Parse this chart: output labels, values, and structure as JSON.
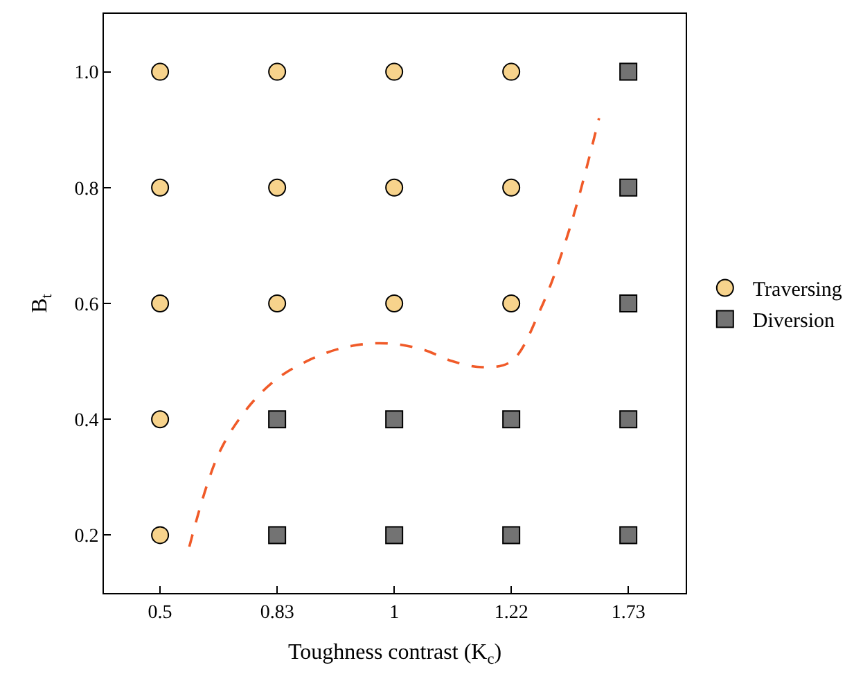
{
  "chart_data": {
    "type": "scatter",
    "xlabel": "Toughness contrast (K$_{c}$)",
    "ylabel": "B$_{t}$",
    "categories": [
      "0.5",
      null,
      null,
      null,
      "0.83",
      null,
      null,
      null,
      "1",
      null,
      null,
      null,
      "1.22",
      null,
      null,
      null,
      "1.73"
    ],
    "ylim": [
      0.1,
      1.1
    ],
    "yticks": [
      {
        "value": 0.2,
        "label": "0.2"
      },
      {
        "value": 0.4,
        "label": "0.4"
      },
      {
        "value": 0.6,
        "label": "0.6"
      },
      {
        "value": 0.8,
        "label": "0.8"
      },
      {
        "value": 1.0,
        "label": "1.0"
      }
    ],
    "legend": "right",
    "series": [
      {
        "name": "Traversing",
        "marker": "circle",
        "color": "#f7d38c",
        "x": [
          "0.5",
          "0.5",
          "0.5",
          "0.5",
          "0.5",
          "0.83",
          "0.83",
          "0.83",
          "1",
          "1",
          "1",
          "1.22",
          "1.22",
          "1.22"
        ],
        "values": [
          0.2,
          0.4,
          0.6,
          0.8,
          1.0,
          0.6,
          0.8,
          1.0,
          0.6,
          0.8,
          1.0,
          0.6,
          0.8,
          1.0
        ]
      },
      {
        "name": "Diversion",
        "marker": "square",
        "color": "#737373",
        "x": [
          "0.83",
          "0.83",
          "1",
          "1",
          "1.22",
          "1.22",
          "1.73",
          "1.73",
          "1.73",
          "1.73",
          "1.73"
        ],
        "values": [
          0.2,
          0.4,
          0.2,
          0.4,
          0.2,
          0.4,
          0.2,
          0.4,
          0.6,
          0.8,
          1.0
        ]
      },
      {
        "type": "line",
        "marker": "none",
        "line_style": "dashed",
        "color": "#f05a28",
        "values": [
          null,
          0.18,
          0.34,
          0.42,
          0.47,
          0.5,
          0.52,
          0.53,
          0.53,
          0.52,
          0.5,
          0.49,
          0.5,
          0.59,
          0.73,
          0.92,
          null
        ]
      }
    ]
  }
}
